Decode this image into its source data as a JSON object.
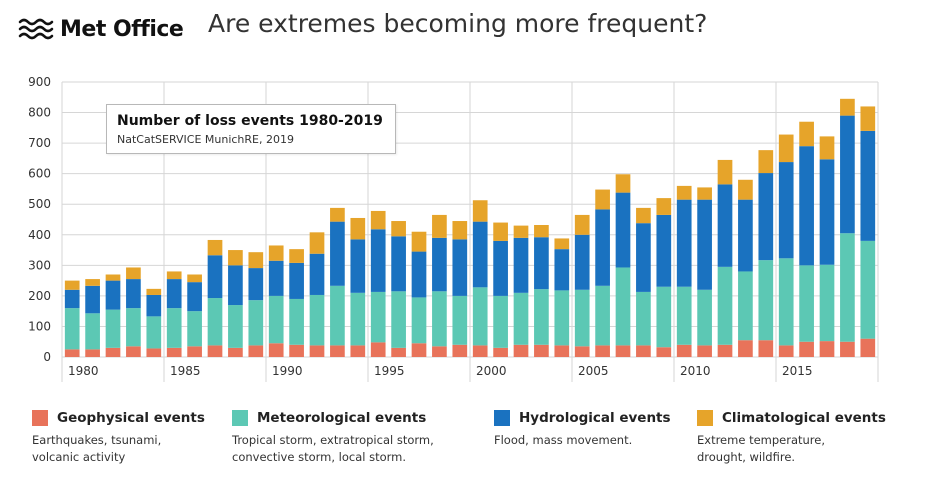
{
  "header": {
    "logo_text": "Met Office",
    "logo_icon": "met-office-wave-icon",
    "title": "Are extremes becoming more frequent?"
  },
  "info_box": {
    "title": "Number of loss events 1980-2019",
    "source": "NatCatSERVICE MunichRE, 2019"
  },
  "legend": [
    {
      "name": "Geophysical events",
      "desc": "Earthquakes, tsunami,\nvolcanic activity",
      "color": "#e8735a"
    },
    {
      "name": "Meteorological events",
      "desc": "Tropical storm, extratropical storm,\nconvective storm, local storm.",
      "color": "#5cc8b4"
    },
    {
      "name": "Hydrological events",
      "desc": "Flood, mass movement.",
      "color": "#1a72c0"
    },
    {
      "name": "Climatological events",
      "desc": "Extreme temperature,\ndrought, wildfire.",
      "color": "#e6a42a"
    }
  ],
  "chart_data": {
    "type": "bar",
    "stacked": true,
    "categories": [
      1980,
      1981,
      1982,
      1983,
      1984,
      1985,
      1986,
      1987,
      1988,
      1989,
      1990,
      1991,
      1992,
      1993,
      1994,
      1995,
      1996,
      1997,
      1998,
      1999,
      2000,
      2001,
      2002,
      2003,
      2004,
      2005,
      2006,
      2007,
      2008,
      2009,
      2010,
      2011,
      2012,
      2013,
      2014,
      2015,
      2016,
      2017,
      2018,
      2019
    ],
    "x_tick_labels": [
      "1980",
      "1985",
      "1990",
      "1995",
      "2000",
      "2005",
      "2010",
      "2015"
    ],
    "x_tick_years": [
      1980,
      1985,
      1990,
      1995,
      2000,
      2005,
      2010,
      2015
    ],
    "ylim": [
      0,
      900
    ],
    "y_ticks": [
      0,
      100,
      200,
      300,
      400,
      500,
      600,
      700,
      800,
      900
    ],
    "grid": true,
    "series": [
      {
        "name": "Geophysical events",
        "color": "#e8735a",
        "values": [
          25,
          25,
          30,
          35,
          28,
          30,
          35,
          38,
          30,
          38,
          45,
          40,
          38,
          38,
          38,
          48,
          30,
          45,
          35,
          40,
          38,
          30,
          40,
          40,
          38,
          35,
          38,
          38,
          38,
          32,
          40,
          38,
          40,
          55,
          55,
          38,
          50,
          52,
          50,
          60
        ]
      },
      {
        "name": "Meteorological events",
        "color": "#5cc8b4",
        "values": [
          135,
          118,
          125,
          125,
          105,
          130,
          115,
          155,
          140,
          148,
          155,
          150,
          165,
          195,
          172,
          165,
          185,
          150,
          180,
          160,
          190,
          170,
          170,
          182,
          180,
          185,
          195,
          255,
          175,
          198,
          190,
          182,
          255,
          225,
          262,
          285,
          250,
          250,
          355,
          320
        ]
      },
      {
        "name": "Hydrological events",
        "color": "#1a72c0",
        "values": [
          60,
          90,
          95,
          95,
          70,
          95,
          95,
          140,
          130,
          105,
          115,
          118,
          135,
          210,
          175,
          205,
          180,
          150,
          175,
          185,
          215,
          180,
          180,
          170,
          135,
          180,
          250,
          245,
          225,
          235,
          285,
          295,
          270,
          235,
          285,
          315,
          390,
          345,
          385,
          360
        ]
      },
      {
        "name": "Climatological events",
        "color": "#e6a42a",
        "values": [
          30,
          22,
          20,
          38,
          20,
          25,
          25,
          50,
          50,
          52,
          50,
          45,
          70,
          45,
          70,
          60,
          50,
          65,
          75,
          60,
          70,
          60,
          40,
          40,
          35,
          65,
          65,
          60,
          50,
          55,
          45,
          40,
          80,
          65,
          75,
          90,
          80,
          75,
          55,
          80
        ]
      }
    ]
  }
}
